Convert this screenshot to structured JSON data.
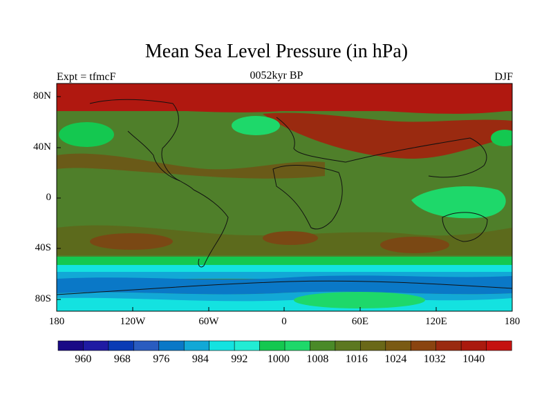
{
  "title": "Mean Sea Level Pressure (in hPa)",
  "subtitle_left": "Expt = tfmcF",
  "subtitle_center": "0052kyr BP",
  "subtitle_right": "DJF",
  "y_ticks": [
    "80N",
    "40N",
    "0",
    "40S",
    "80S"
  ],
  "x_ticks": [
    "180",
    "120W",
    "60W",
    "0",
    "60E",
    "120E",
    "180"
  ],
  "colorbar": {
    "labels": [
      "960",
      "968",
      "976",
      "984",
      "992",
      "1000",
      "1008",
      "1016",
      "1024",
      "1032",
      "1040"
    ],
    "colors": [
      "#1a0a86",
      "#1f1ba3",
      "#0a3bb5",
      "#2a5cc0",
      "#0a78c7",
      "#12a8d6",
      "#14e2e0",
      "#22ecd4",
      "#14c850",
      "#1ed86a",
      "#4a8a28",
      "#5c7820",
      "#6a6818",
      "#7a5a14",
      "#8a4410",
      "#9a2a10",
      "#aa1a0e",
      "#c41210"
    ]
  },
  "colors": {
    "high": "#b01810",
    "mid": "#4f7f2a",
    "low": "#12d8d0",
    "coast": "#111111"
  }
}
